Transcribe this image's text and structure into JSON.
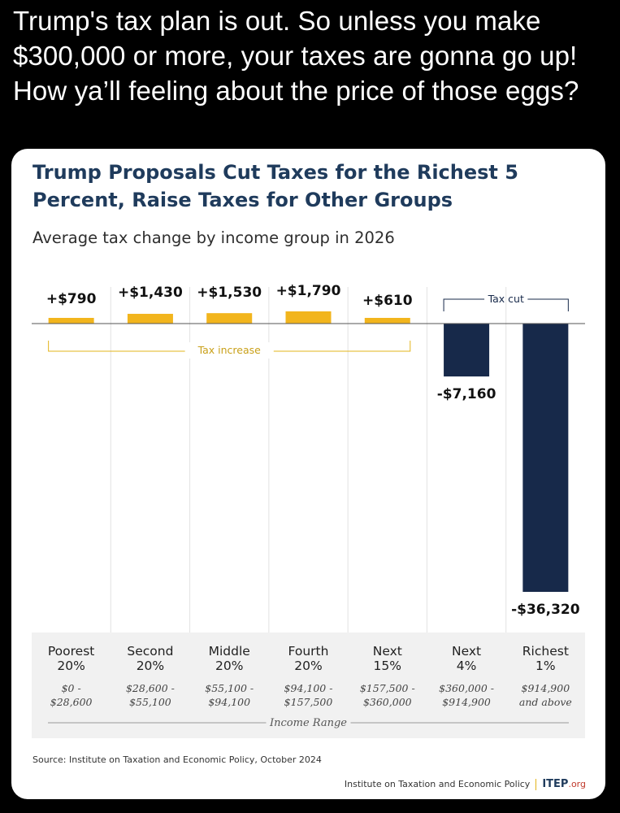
{
  "post": {
    "text": "Trump's tax plan is out. So unless you make $300,000 or more, your taxes are gonna go up! How ya’ll feeling about the price of those eggs?"
  },
  "card": {
    "title": "Trump Proposals Cut Taxes for the Richest 5 Percent, Raise Taxes for Other Groups",
    "subtitle": "Average tax change by income group in 2026",
    "source": "Source: Institute on Taxation and Economic Policy, October 2024",
    "footer_org": "Institute on Taxation and Economic Policy",
    "footer_logo": "ITEP",
    "footer_logo_suffix": ".org"
  },
  "colors": {
    "increase": "#f2b51d",
    "cut": "#17294a",
    "title": "#1f3b5c"
  },
  "chart_data": {
    "type": "bar",
    "title": "Trump Proposals Cut Taxes for the Richest 5 Percent, Raise Taxes for Other Groups",
    "subtitle": "Average tax change by income group in 2026",
    "categories": [
      "Poorest 20%",
      "Second 20%",
      "Middle 20%",
      "Fourth 20%",
      "Next 15%",
      "Next 4%",
      "Richest 1%"
    ],
    "category_lines": [
      [
        "Poorest",
        "20%"
      ],
      [
        "Second",
        "20%"
      ],
      [
        "Middle",
        "20%"
      ],
      [
        "Fourth",
        "20%"
      ],
      [
        "Next",
        "15%"
      ],
      [
        "Next",
        "4%"
      ],
      [
        "Richest",
        "1%"
      ]
    ],
    "ranges": [
      [
        "$0 -",
        "$28,600"
      ],
      [
        "$28,600 -",
        "$55,100"
      ],
      [
        "$55,100 -",
        "$94,100"
      ],
      [
        "$94,100 -",
        "$157,500"
      ],
      [
        "$157,500 -",
        "$360,000"
      ],
      [
        "$360,000 -",
        "$914,900"
      ],
      [
        "$914,900",
        "and above"
      ]
    ],
    "values": [
      790,
      1430,
      1530,
      1790,
      610,
      -7160,
      -36320
    ],
    "value_labels": [
      "+$790",
      "+$1,430",
      "+$1,530",
      "+$1,790",
      "+$610",
      "-$7,160",
      "-$36,320"
    ],
    "increase_label": "Tax increase",
    "cut_label": "Tax cut",
    "xlabel": "Income Range",
    "ylim": [
      -36320,
      1790
    ],
    "grid": true
  }
}
